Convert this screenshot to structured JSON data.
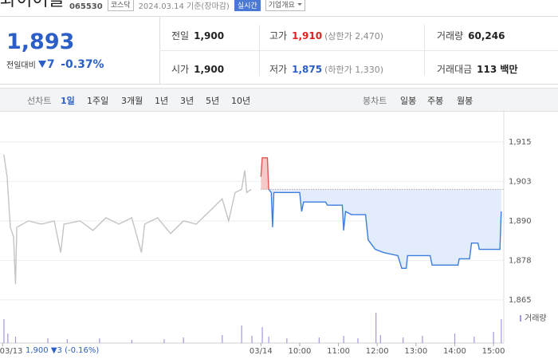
{
  "header": {
    "name": "와이어블",
    "code": "065530",
    "market": "코스닥",
    "date": "2024.03.14 기준(장마감)",
    "realtime": "실시간",
    "company_info": "기업개요"
  },
  "quote": {
    "price": "1,893",
    "change_label": "전일대비",
    "change": "7",
    "change_rate": "-0.37%"
  },
  "stats": {
    "rows": [
      [
        {
          "label": "전일",
          "value": "1,900"
        },
        {
          "label": "고가",
          "value": "1,910",
          "note": "(상한가 2,470)"
        },
        {
          "label": "거래량",
          "value": "60,246"
        }
      ],
      [
        {
          "label": "시가",
          "value": "1,900"
        },
        {
          "label": "저가",
          "value": "1,875",
          "note": "(하한가 1,330)"
        },
        {
          "label": "거래대금",
          "value": "113 백만"
        }
      ]
    ]
  },
  "tabs": {
    "line_label": "선차트",
    "line": [
      "1일",
      "1주일",
      "3개월",
      "1년",
      "3년",
      "5년",
      "10년"
    ],
    "candle_label": "봉차트",
    "candle": [
      "일봉",
      "주봉",
      "월봉"
    ]
  },
  "prev_info": {
    "close": "1,900",
    "change": "3",
    "rate": "(-0.16%)"
  },
  "chart_data": {
    "type": "line",
    "xlim": [
      -404,
      376
    ],
    "ylim": [
      1862.7,
      1924.6
    ],
    "xticks": [
      {
        "value": -400,
        "label": "03/13"
      },
      {
        "value": 0,
        "label": "03/14"
      },
      {
        "value": 60,
        "label": "10:00"
      },
      {
        "value": 120,
        "label": "11:00"
      },
      {
        "value": 180,
        "label": "12:00"
      },
      {
        "value": 240,
        "label": "13:00"
      },
      {
        "value": 300,
        "label": "14:00"
      },
      {
        "value": 360,
        "label": "15:00"
      }
    ],
    "yticks": [
      {
        "value": 1865,
        "label": "1,865"
      },
      {
        "value": 1877.5,
        "label": "1,878"
      },
      {
        "value": 1890,
        "label": "1,890"
      },
      {
        "value": 1902.5,
        "label": "1,903"
      },
      {
        "value": 1915,
        "label": "1,915"
      }
    ],
    "grid": true,
    "baseline": 1900,
    "series": [
      {
        "color": "#c4c4c4",
        "x": [
          -398,
          -393,
          -388,
          -383,
          -380,
          -378,
          -360,
          -340,
          -320,
          -310,
          -305,
          -280,
          -260,
          -240,
          -220,
          -200,
          -185,
          -180,
          -160,
          -140,
          -120,
          -100,
          -80,
          -60,
          -50,
          -40,
          -30,
          -25,
          -22,
          -15
        ],
        "values": [
          1911,
          1904,
          1888,
          1885,
          1870,
          1888,
          1890,
          1889,
          1890,
          1880,
          1889,
          1890,
          1887,
          1891,
          1889,
          1891,
          1880,
          1889,
          1891,
          1886,
          1890,
          1889,
          1893,
          1897,
          1890,
          1899,
          1900,
          1906,
          1899,
          1900
        ]
      },
      {
        "color": "#3b7ddd",
        "above_color": "#e05555",
        "fill": "#e3ecfa",
        "above_fill": "#f6c9c9",
        "x": [
          0,
          2,
          10,
          12,
          16,
          18,
          20,
          60,
          63,
          66,
          100,
          103,
          126,
          128,
          131,
          140,
          162,
          166,
          177,
          190,
          212,
          218,
          225,
          227,
          262,
          265,
          305,
          307,
          323,
          326,
          336,
          338,
          370,
          372
        ],
        "values": [
          1904,
          1910,
          1910,
          1900,
          1899,
          1888,
          1899,
          1899,
          1893,
          1896,
          1896,
          1895,
          1895,
          1887,
          1893,
          1892,
          1892,
          1884,
          1881,
          1880,
          1879,
          1875,
          1875,
          1879,
          1879,
          1876,
          1876,
          1878,
          1878,
          1883,
          1883,
          1881,
          1881,
          1893
        ]
      }
    ],
    "volume": {
      "name": "거래량",
      "color": "#a596e0",
      "x": [
        -398,
        -392,
        -380,
        -330,
        -300,
        -250,
        -200,
        -150,
        -120,
        -60,
        -30,
        -14,
        2,
        12,
        40,
        90,
        128,
        150,
        178,
        185,
        220,
        250,
        300,
        330,
        360,
        372
      ],
      "values": [
        30,
        12,
        8,
        6,
        5,
        6,
        4,
        5,
        7,
        10,
        22,
        9,
        20,
        8,
        6,
        7,
        9,
        6,
        38,
        10,
        7,
        9,
        12,
        8,
        14,
        30
      ]
    }
  }
}
